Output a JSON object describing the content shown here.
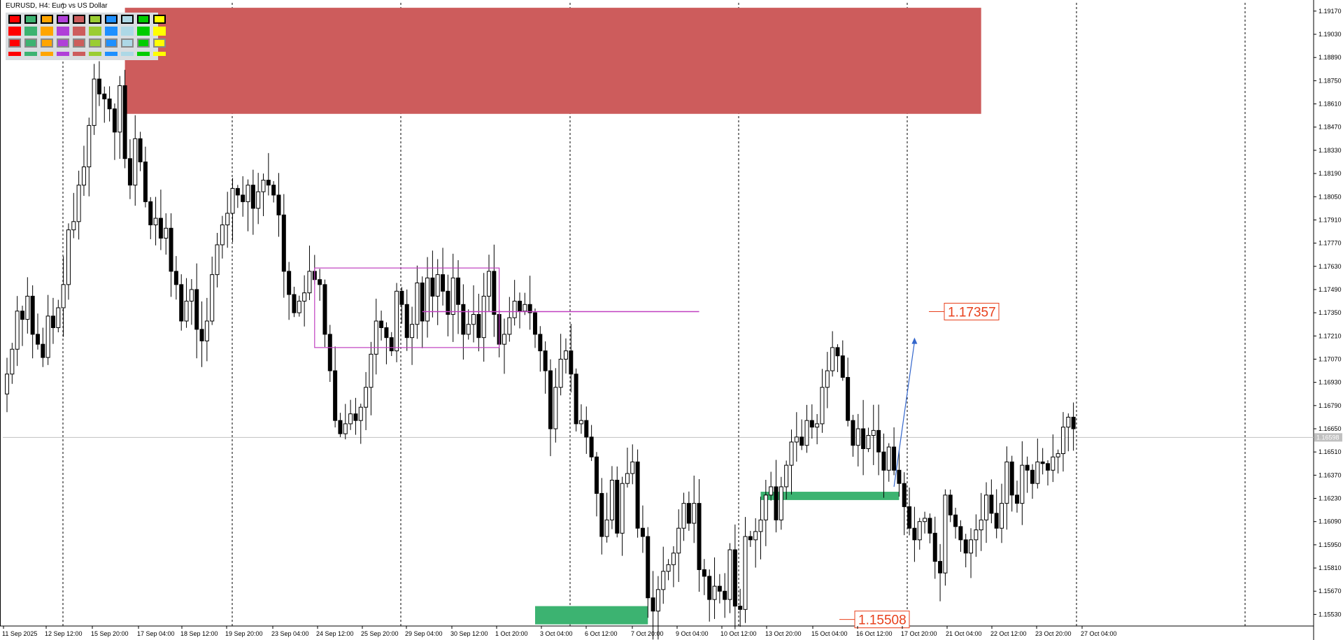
{
  "symbol_title": "EURUSD, H4:  Euro vs US Dollar",
  "colors": {
    "resistance_zone": "#cd5c5c",
    "support_zone": "#3cb371",
    "range_box": "#c040c0",
    "level_label": "#e8401c",
    "arrow": "#3366cc",
    "bull_body": "#ffffff",
    "bear_body": "#000000"
  },
  "palette": {
    "row1": [
      "#ff0000",
      "#3cb371",
      "#ffa500",
      "#b040d8",
      "#cd5c5c",
      "#9acd32",
      "#1e90ff",
      "#add8e6",
      "#00cc00",
      "#ffff00"
    ],
    "row2": [
      "#ff0000",
      "#3cb371",
      "#ffa500",
      "#b040d8",
      "#cd5c5c",
      "#9acd32",
      "#1e90ff",
      "#add8e6",
      "#00cc00",
      "#ffff00"
    ],
    "row3": [
      "#ff0000",
      "#3cb371",
      "#ffa500",
      "#b040d8",
      "#cd5c5c",
      "#9acd32",
      "#1e90ff",
      "#add8e6",
      "#00cc00",
      "#ffff00"
    ],
    "row4": [
      "#ff0000",
      "#3cb371",
      "#ffa500",
      "#b040d8",
      "#cd5c5c",
      "#9acd32",
      "#1e90ff",
      "#add8e6",
      "#00cc00",
      "#ffff00"
    ]
  },
  "chart_data": {
    "type": "candlestick",
    "symbol": "EURUSD",
    "timeframe": "H4",
    "title": "EURUSD, H4:  Euro vs US Dollar",
    "ylim": [
      1.1546,
      1.1922
    ],
    "y_ticks": [
      "1.19170",
      "1.19030",
      "1.18890",
      "1.18750",
      "1.18610",
      "1.18470",
      "1.18330",
      "1.18190",
      "1.18050",
      "1.17910",
      "1.17770",
      "1.17630",
      "1.17490",
      "1.17350",
      "1.17210",
      "1.17070",
      "1.16930",
      "1.16790",
      "1.16650",
      "1.16510",
      "1.16370",
      "1.16230",
      "1.16090",
      "1.15950",
      "1.15810",
      "1.15670",
      "1.15530"
    ],
    "x_ticks": [
      "11 Sep 2025",
      "12 Sep 12:00",
      "15 Sep 20:00",
      "17 Sep 04:00",
      "18 Sep 12:00",
      "19 Sep 20:00",
      "23 Sep 04:00",
      "24 Sep 12:00",
      "25 Sep 20:00",
      "29 Sep 04:00",
      "30 Sep 12:00",
      "1 Oct 20:00",
      "3 Oct 04:00",
      "6 Oct 12:00",
      "7 Oct 20:00",
      "9 Oct 04:00",
      "10 Oct 12:00",
      "13 Oct 20:00",
      "15 Oct 04:00",
      "16 Oct 12:00",
      "17 Oct 20:00",
      "21 Oct 04:00",
      "22 Oct 12:00",
      "23 Oct 20:00",
      "27 Oct 04:00"
    ],
    "current_price": "1.16598",
    "level_labels": [
      "1.17357",
      "1.15508"
    ],
    "closes": [
      1.1698,
      1.1713,
      1.1736,
      1.1731,
      1.1745,
      1.1722,
      1.1716,
      1.1708,
      1.1733,
      1.1726,
      1.1738,
      1.1752,
      1.1785,
      1.179,
      1.1812,
      1.1823,
      1.1848,
      1.1876,
      1.1867,
      1.1864,
      1.1858,
      1.1844,
      1.1872,
      1.1828,
      1.1812,
      1.184,
      1.1826,
      1.1802,
      1.1788,
      1.1792,
      1.178,
      1.1786,
      1.176,
      1.1752,
      1.173,
      1.1742,
      1.1749,
      1.1725,
      1.1718,
      1.173,
      1.1758,
      1.1776,
      1.1788,
      1.1795,
      1.181,
      1.1806,
      1.1802,
      1.1812,
      1.1798,
      1.1808,
      1.1815,
      1.1812,
      1.1806,
      1.1794,
      1.176,
      1.1746,
      1.1735,
      1.1742,
      1.1747,
      1.176,
      1.1755,
      1.1752,
      1.1722,
      1.17,
      1.167,
      1.1662,
      1.1668,
      1.1674,
      1.167,
      1.1678,
      1.169,
      1.171,
      1.173,
      1.1726,
      1.172,
      1.1712,
      1.1748,
      1.174,
      1.172,
      1.1728,
      1.1753,
      1.173,
      1.1756,
      1.1745,
      1.1758,
      1.1748,
      1.1734,
      1.1756,
      1.174,
      1.1722,
      1.1728,
      1.1734,
      1.172,
      1.1745,
      1.176,
      1.1734,
      1.1716,
      1.1722,
      1.1732,
      1.1742,
      1.1736,
      1.174,
      1.1735,
      1.1722,
      1.1712,
      1.17,
      1.1665,
      1.169,
      1.1707,
      1.1712,
      1.1698,
      1.1668,
      1.167,
      1.166,
      1.1648,
      1.1626,
      1.16,
      1.161,
      1.1634,
      1.1602,
      1.1632,
      1.1638,
      1.1645,
      1.1605,
      1.16,
      1.1563,
      1.1555,
      1.1568,
      1.1579,
      1.1583,
      1.159,
      1.1605,
      1.162,
      1.1608,
      1.162,
      1.158,
      1.1576,
      1.1562,
      1.157,
      1.1567,
      1.1562,
      1.1592,
      1.1558,
      1.1556,
      1.16,
      1.1598,
      1.1603,
      1.161,
      1.1625,
      1.163,
      1.161,
      1.163,
      1.1643,
      1.1657,
      1.166,
      1.1655,
      1.167,
      1.1666,
      1.1668,
      1.169,
      1.17,
      1.1714,
      1.1709,
      1.1696,
      1.167,
      1.1655,
      1.1665,
      1.1653,
      1.1661,
      1.1664,
      1.1651,
      1.164,
      1.1654,
      1.164,
      1.1632,
      1.1618,
      1.1605,
      1.1598,
      1.1609,
      1.1611,
      1.1602,
      1.1585,
      1.1578,
      1.1625,
      1.1613,
      1.1606,
      1.1598,
      1.159,
      1.1598,
      1.1604,
      1.161,
      1.1625,
      1.1614,
      1.1605,
      1.162,
      1.1645,
      1.1625,
      1.162,
      1.1643,
      1.164,
      1.1632,
      1.1645,
      1.1644,
      1.164,
      1.1648,
      1.165,
      1.1666,
      1.1672,
      1.1665
    ]
  },
  "annotations": {
    "resistance_zone": {
      "from_candle": 23,
      "to_candle": 190,
      "price_top": 1.1919,
      "price_bottom": 1.1855
    },
    "range_box": {
      "from_candle": 60,
      "to_candle": 96,
      "price_top": 1.1762,
      "price_bottom": 1.1714
    },
    "level_1": {
      "from_candle": 81,
      "to_candle": 135,
      "price": 1.17357,
      "label": "1.17357"
    },
    "support_zone_low": {
      "from_candle": 103,
      "to_candle": 125,
      "price_top": 1.1558,
      "price_bottom": 1.1547,
      "label": "1.15508"
    },
    "support_zone_mid": {
      "from_candle": 147,
      "to_candle": 174,
      "price_top": 1.1627,
      "price_bottom": 1.1622
    },
    "arrow": {
      "from_candle": 173,
      "from_price": 1.163,
      "to_candle": 177,
      "to_price": 1.172
    }
  }
}
